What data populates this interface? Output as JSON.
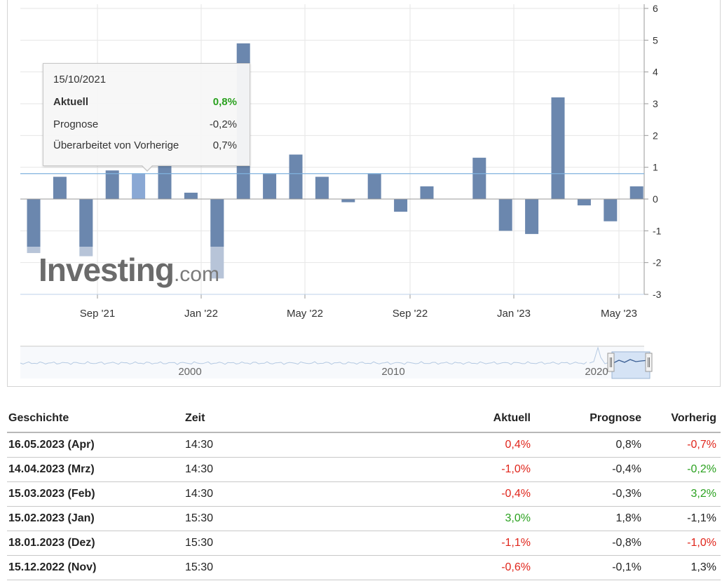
{
  "chart_data": {
    "type": "bar",
    "x_ticks": [
      "Sep '21",
      "Jan '22",
      "May '22",
      "Sep '22",
      "Jan '23",
      "May '23"
    ],
    "y_ticks": [
      6,
      5,
      4,
      3,
      2,
      1,
      0,
      -1,
      -2,
      -3
    ],
    "ylim": [
      -3,
      6
    ],
    "y_axis_position": "right",
    "grid": true,
    "reference_value": 0.8,
    "series": [
      {
        "values": [
          -1.5,
          0.7,
          -1.5,
          0.9,
          0.8,
          1.1,
          0.2,
          -1.5,
          4.9,
          0.8,
          1.4,
          0.7,
          -0.1,
          0.8,
          -0.4,
          0.4,
          0.0,
          1.3,
          -1.0,
          -1.1,
          3.2,
          -0.2,
          -0.7,
          0.4
        ]
      }
    ],
    "forecast_overlay": [
      {
        "index": 0,
        "value": -1.7
      },
      {
        "index": 2,
        "value": -1.8
      },
      {
        "index": 7,
        "value": -2.5
      }
    ],
    "highlighted_index": 4,
    "navigator": {
      "labels": [
        "2000",
        "2010",
        "2020"
      ]
    },
    "watermark": {
      "brand": "Investing",
      "suffix": ".com"
    }
  },
  "tooltip": {
    "date": "15/10/2021",
    "rows": [
      {
        "label": "Aktuell",
        "value": "0,8%"
      },
      {
        "label": "Prognose",
        "value": "-0,2%"
      },
      {
        "label": "Überarbeitet von Vorherige",
        "value": "0,7%"
      }
    ]
  },
  "table": {
    "headers": [
      "Geschichte",
      "Zeit",
      "Aktuell",
      "Prognose",
      "Vorherig"
    ],
    "rows": [
      {
        "date": "16.05.2023 (Apr)",
        "time": "14:30",
        "actual": "0,4%",
        "actual_class": "neg",
        "forecast": "0,8%",
        "previous": "-0,7%",
        "previous_class": "neg"
      },
      {
        "date": "14.04.2023 (Mrz)",
        "time": "14:30",
        "actual": "-1,0%",
        "actual_class": "neg",
        "forecast": "-0,4%",
        "previous": "-0,2%",
        "previous_class": "pos"
      },
      {
        "date": "15.03.2023 (Feb)",
        "time": "14:30",
        "actual": "-0,4%",
        "actual_class": "neg",
        "forecast": "-0,3%",
        "previous": "3,2%",
        "previous_class": "pos"
      },
      {
        "date": "15.02.2023 (Jan)",
        "time": "15:30",
        "actual": "3,0%",
        "actual_class": "pos",
        "forecast": "1,8%",
        "previous": "-1,1%",
        "previous_class": "neutral"
      },
      {
        "date": "18.01.2023 (Dez)",
        "time": "15:30",
        "actual": "-1,1%",
        "actual_class": "neg",
        "forecast": "-0,8%",
        "previous": "-1,0%",
        "previous_class": "neg"
      },
      {
        "date": "15.12.2022 (Nov)",
        "time": "15:30",
        "actual": "-0,6%",
        "actual_class": "neg",
        "forecast": "-0,1%",
        "previous": "1,3%",
        "previous_class": "neutral"
      }
    ]
  },
  "colors": {
    "bar": "#6b87ae",
    "bar_highlight": "#8aa8d4",
    "forecast": "#b7c4d8",
    "reference_line": "#7fb2de",
    "grid": "#e6e6e6",
    "positive": "#2aa11f",
    "negative": "#e0251b"
  }
}
